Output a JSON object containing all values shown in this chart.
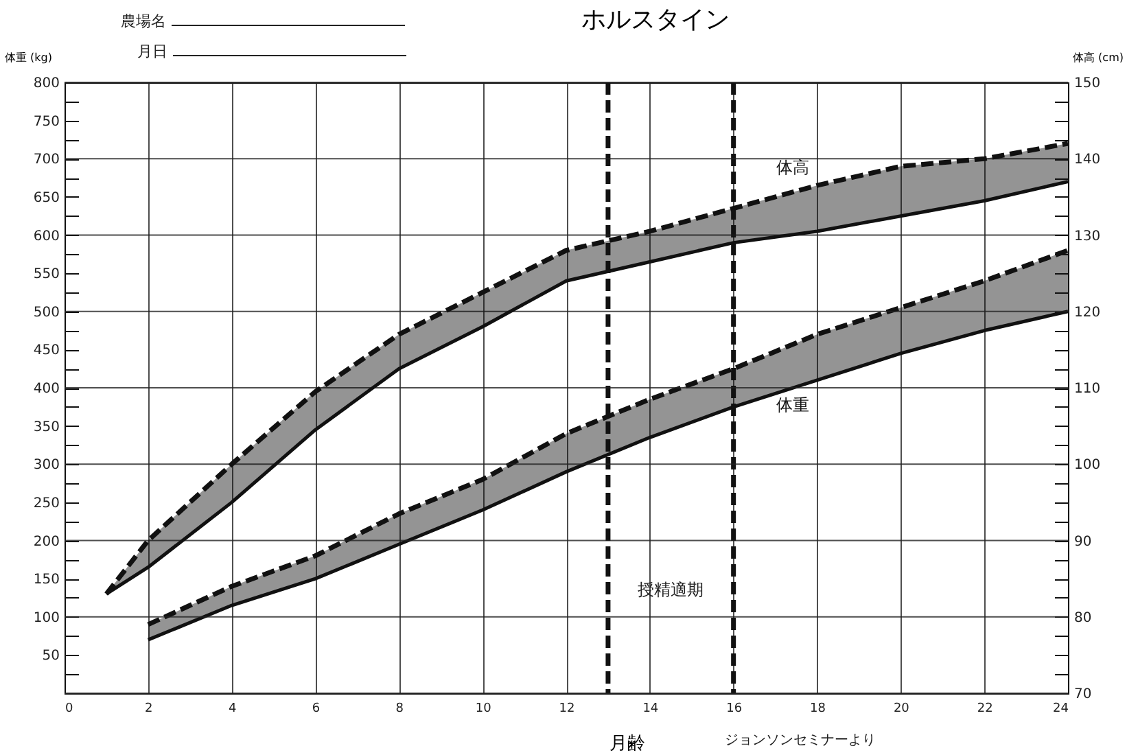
{
  "chart_data": {
    "type": "line",
    "title": "ホルスタイン",
    "xlabel": "月齢",
    "ylabel": "体重 (kg)",
    "y2label": "体高 (cm)",
    "annotations": [
      "農場名",
      "月日",
      "授精適期",
      "ジョンソンセミナーより"
    ],
    "xlim": [
      0,
      24
    ],
    "xticks": [
      0,
      2,
      4,
      6,
      8,
      10,
      12,
      14,
      16,
      18,
      20,
      22,
      24
    ],
    "ylim": [
      0,
      800
    ],
    "yticks": [
      {
        "value": 25,
        "label": null
      },
      50,
      {
        "value": 75,
        "label": null
      },
      100,
      {
        "value": 125,
        "label": null
      },
      150,
      {
        "value": 175,
        "label": null
      },
      200,
      {
        "value": 225,
        "label": null
      },
      250,
      {
        "value": 275,
        "label": null
      },
      300,
      {
        "value": 325,
        "label": null
      },
      350,
      {
        "value": 375,
        "label": null
      },
      400,
      {
        "value": 425,
        "label": null
      },
      450,
      {
        "value": 475,
        "label": null
      },
      500,
      {
        "value": 525,
        "label": null
      },
      550,
      {
        "value": 575,
        "label": null
      },
      600,
      {
        "value": 625,
        "label": null
      },
      650,
      {
        "value": 675,
        "label": null
      },
      700,
      {
        "value": 725,
        "label": null
      },
      750,
      {
        "value": 775,
        "label": null
      },
      800
    ],
    "y2lim": [
      70,
      150
    ],
    "y2ticks": [
      70,
      {
        "value": 72.5,
        "label": null
      },
      {
        "value": 75,
        "label": null
      },
      {
        "value": 77.5,
        "label": null
      },
      80,
      {
        "value": 82.5,
        "label": null
      },
      {
        "value": 85,
        "label": null
      },
      {
        "value": 87.5,
        "label": null
      },
      90,
      {
        "value": 92.5,
        "label": null
      },
      {
        "value": 95,
        "label": null
      },
      {
        "value": 97.5,
        "label": null
      },
      100,
      {
        "value": 102.5,
        "label": null
      },
      {
        "value": 105,
        "label": null
      },
      {
        "value": 107.5,
        "label": null
      },
      110,
      {
        "value": 112.5,
        "label": null
      },
      {
        "value": 115,
        "label": null
      },
      {
        "value": 117.5,
        "label": null
      },
      120,
      {
        "value": 122.5,
        "label": null
      },
      {
        "value": 125,
        "label": null
      },
      {
        "value": 127.5,
        "label": null
      },
      130,
      {
        "value": 132.5,
        "label": null
      },
      {
        "value": 135,
        "label": null
      },
      {
        "value": 137.5,
        "label": null
      },
      140,
      {
        "value": 142.5,
        "label": null
      },
      {
        "value": 145,
        "label": null
      },
      {
        "value": 147.5,
        "label": null
      },
      150
    ],
    "grid": true,
    "ref_lines": [
      {
        "axis": "x",
        "value": 13,
        "line_style": "dashed"
      },
      {
        "axis": "x",
        "value": 16,
        "line_style": "dashed"
      }
    ],
    "series": [
      {
        "name": "体重",
        "color": "#111111",
        "line_style": "solid",
        "x": [
          2,
          4,
          6,
          8,
          10,
          12,
          14,
          16,
          18,
          20,
          22,
          24
        ],
        "values": [
          70,
          115,
          150,
          195,
          240,
          290,
          335,
          375,
          410,
          445,
          475,
          500
        ],
        "lower": [
          70,
          115,
          150,
          195,
          240,
          290,
          335,
          375,
          410,
          445,
          475,
          500
        ],
        "upper": [
          90,
          140,
          180,
          235,
          280,
          340,
          385,
          425,
          470,
          505,
          540,
          580
        ]
      },
      {
        "color": "#111111",
        "line_style": "dashed",
        "x": [
          2,
          4,
          6,
          8,
          10,
          12,
          14,
          16,
          18,
          20,
          22,
          24
        ],
        "values": [
          90,
          140,
          180,
          235,
          280,
          340,
          385,
          425,
          470,
          505,
          540,
          580
        ]
      },
      {
        "color": "#111111",
        "axis": "y2",
        "line_style": "solid",
        "x": [
          1,
          2,
          4,
          6,
          8,
          10,
          12,
          14,
          16,
          18,
          20,
          22,
          24
        ],
        "values": [
          83,
          86.5,
          95,
          104.5,
          112.5,
          118,
          124,
          126.5,
          129,
          130.5,
          132.5,
          134.5,
          137
        ],
        "lower": [
          83,
          86.5,
          95,
          104.5,
          112.5,
          118,
          124,
          126.5,
          129,
          130.5,
          132.5,
          134.5,
          137
        ],
        "upper": [
          83,
          90,
          100,
          109.5,
          117,
          122.5,
          128,
          130.5,
          133.5,
          136.5,
          139,
          140,
          142
        ]
      },
      {
        "name": "体高",
        "color": "#111111",
        "axis": "y2",
        "line_style": "dashed",
        "x": [
          1,
          2,
          4,
          6,
          8,
          10,
          12,
          14,
          16,
          18,
          20,
          22,
          24
        ],
        "values": [
          83,
          90,
          100,
          109.5,
          117,
          122.5,
          128,
          130.5,
          133.5,
          136.5,
          139,
          140,
          142
        ]
      }
    ]
  }
}
